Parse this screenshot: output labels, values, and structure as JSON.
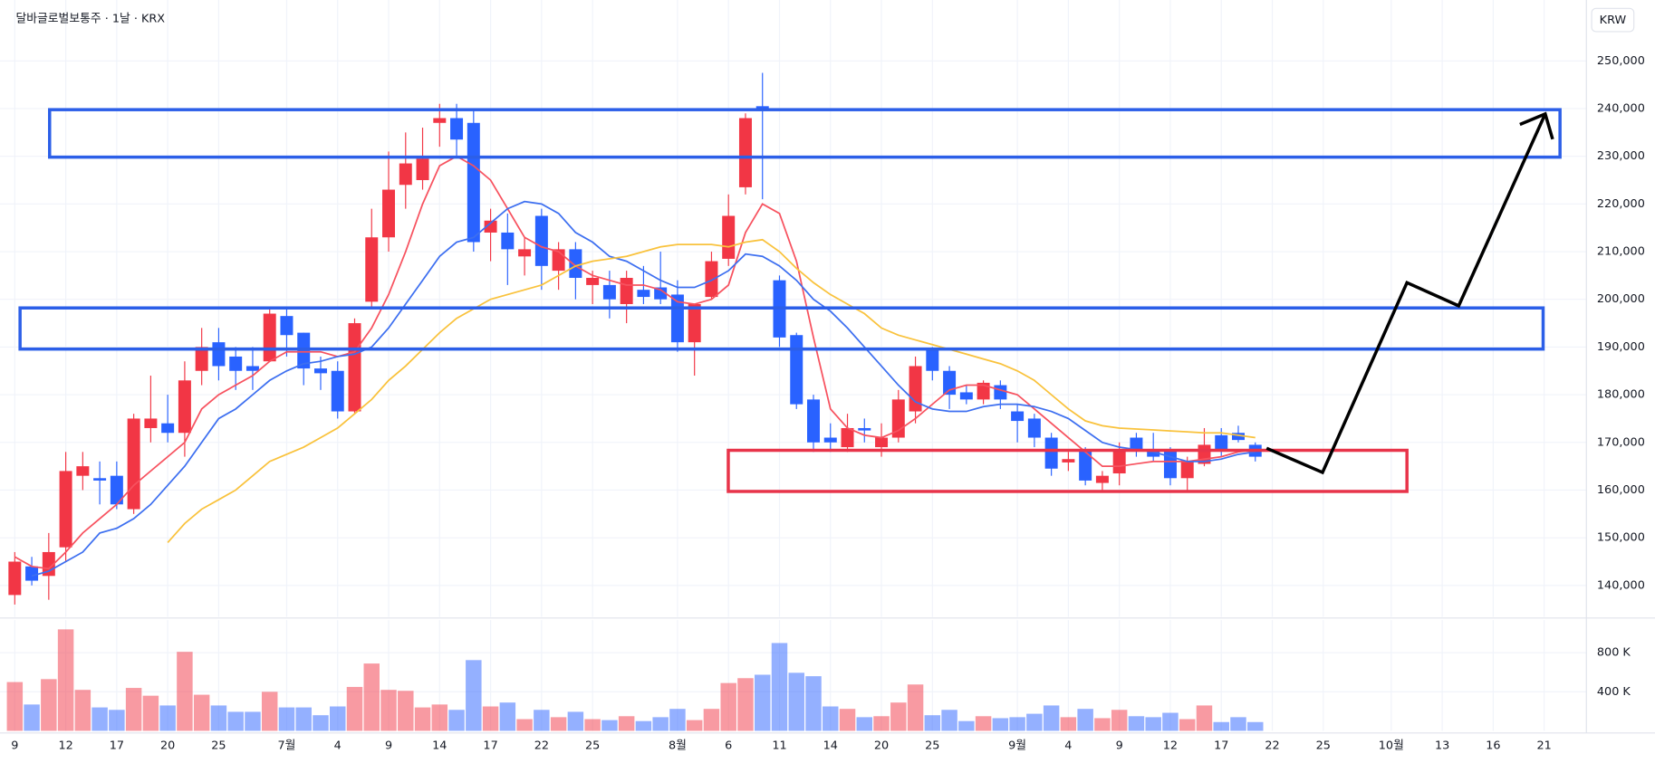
{
  "chart_data": {
    "type": "candlestick",
    "title": "달바글로벌보통주 · 1날 · KRX",
    "currency": "KRW",
    "up_color": "#f23645",
    "down_color": "#2962ff",
    "grid": true,
    "categories": [
      "9",
      null,
      null,
      "12",
      null,
      null,
      "17",
      null,
      null,
      "20",
      null,
      null,
      "25",
      null,
      null,
      null,
      "7월",
      null,
      null,
      "4",
      null,
      null,
      "9",
      null,
      null,
      "14",
      null,
      null,
      "17",
      null,
      null,
      "22",
      null,
      null,
      "25",
      null,
      null,
      null,
      null,
      "8월",
      null,
      null,
      "6",
      null,
      null,
      "11",
      null,
      null,
      "14",
      null,
      null,
      "20",
      null,
      null,
      "25",
      null,
      null,
      null,
      null,
      "9월",
      null,
      null,
      "4",
      null,
      null,
      "9",
      null,
      null,
      "12",
      null,
      null,
      "17",
      null,
      null,
      "22",
      null,
      null,
      "25",
      null,
      null,
      null,
      "10월",
      null,
      null,
      "13",
      null,
      null,
      "16",
      null,
      null,
      "21"
    ],
    "open": [
      138000,
      144000,
      142000,
      148000,
      163000,
      162500,
      163000,
      156000,
      173000,
      174000,
      172000,
      185000,
      191000,
      188000,
      186000,
      187000,
      196500,
      193000,
      185500,
      185000,
      176500,
      199500,
      213000,
      224000,
      225000,
      237000,
      238000,
      237000,
      214000,
      214000,
      209000,
      217500,
      206000,
      210500,
      203000,
      203000,
      199000,
      202000,
      202500,
      201000,
      191000,
      200500,
      208500,
      223500,
      240500,
      204000,
      192500,
      179000,
      171000,
      169000,
      173000,
      169000,
      171000,
      176500,
      189500,
      185000,
      180500,
      179000,
      182000,
      176500,
      175000,
      171000,
      165800,
      168500,
      161500,
      163500,
      171000,
      168500,
      168500,
      162500,
      165500,
      171500,
      172000,
      169500,
      null,
      null,
      null,
      null,
      null,
      null,
      null,
      null,
      null,
      null,
      null,
      null,
      null,
      null,
      null,
      null,
      null
    ],
    "high": [
      147000,
      146000,
      151000,
      168000,
      168000,
      166000,
      166000,
      176000,
      184000,
      180000,
      187000,
      194000,
      194000,
      190000,
      190000,
      198000,
      198000,
      193000,
      188000,
      187000,
      196000,
      219000,
      231000,
      235000,
      236000,
      241000,
      241000,
      240000,
      219000,
      218000,
      213000,
      219000,
      212000,
      212000,
      206000,
      206000,
      206000,
      207000,
      210000,
      204000,
      199000,
      210000,
      222000,
      239000,
      247500,
      205000,
      193000,
      180000,
      174000,
      176000,
      175000,
      174000,
      181000,
      188000,
      190000,
      186000,
      182000,
      183000,
      183000,
      178000,
      176000,
      172000,
      168000,
      169000,
      164000,
      170000,
      172000,
      172000,
      169000,
      167000,
      173000,
      173000,
      173500,
      170000,
      null,
      null,
      null,
      null,
      null,
      null,
      null,
      null,
      null,
      null,
      null,
      null,
      null,
      null,
      null,
      null,
      null
    ],
    "low": [
      136000,
      140000,
      137000,
      145000,
      160000,
      157000,
      156000,
      155000,
      170000,
      170000,
      167000,
      182000,
      183000,
      181000,
      181000,
      187000,
      188000,
      182000,
      181000,
      175000,
      176000,
      198000,
      210000,
      219000,
      223000,
      232000,
      230000,
      210000,
      208000,
      203000,
      205000,
      202000,
      202000,
      200000,
      199000,
      196000,
      195000,
      199000,
      199000,
      189000,
      184000,
      200000,
      207000,
      222000,
      221000,
      190000,
      177000,
      168000,
      168000,
      168000,
      170000,
      167000,
      170000,
      174000,
      183000,
      177000,
      178000,
      178000,
      177000,
      170000,
      169000,
      163000,
      164000,
      161000,
      160000,
      161000,
      167000,
      166000,
      161000,
      160000,
      165000,
      167000,
      170000,
      166000,
      null,
      null,
      null,
      null,
      null,
      null,
      null,
      null,
      null,
      null,
      null,
      null,
      null,
      null,
      null,
      null,
      null
    ],
    "close": [
      145000,
      141000,
      147000,
      164000,
      165000,
      162000,
      157000,
      175000,
      175000,
      172000,
      183000,
      190000,
      186000,
      185000,
      185000,
      197000,
      192500,
      185500,
      184500,
      176500,
      195000,
      213000,
      223000,
      228500,
      229500,
      238000,
      233500,
      212000,
      216500,
      210500,
      210500,
      207000,
      210500,
      204500,
      204500,
      200000,
      204500,
      200500,
      200000,
      191000,
      199000,
      208000,
      217500,
      238000,
      239500,
      192000,
      178000,
      170000,
      170000,
      173000,
      172500,
      171000,
      179000,
      186000,
      185000,
      180000,
      179000,
      182500,
      179000,
      174500,
      171000,
      164500,
      166500,
      162000,
      163000,
      168500,
      168500,
      167000,
      162500,
      166000,
      169500,
      168500,
      170500,
      167000,
      null,
      null,
      null,
      null,
      null,
      null,
      null,
      null,
      null,
      null,
      null,
      null,
      null,
      null,
      null,
      null,
      null
    ],
    "volume": [
      500000,
      270000,
      530000,
      1040000,
      420000,
      240000,
      215000,
      440000,
      360000,
      260000,
      810000,
      370000,
      260000,
      195000,
      195000,
      400000,
      240000,
      240000,
      160000,
      250000,
      450000,
      690000,
      420000,
      410000,
      240000,
      270000,
      215000,
      725000,
      250000,
      290000,
      120000,
      215000,
      140000,
      195000,
      120000,
      110000,
      150000,
      100000,
      140000,
      225000,
      110000,
      225000,
      490000,
      540000,
      575000,
      900000,
      595000,
      560000,
      250000,
      225000,
      140000,
      150000,
      290000,
      475000,
      160000,
      215000,
      100000,
      150000,
      130000,
      140000,
      175000,
      260000,
      140000,
      225000,
      130000,
      215000,
      150000,
      140000,
      185000,
      120000,
      260000,
      90000,
      140000,
      90000,
      null,
      null,
      null,
      null,
      null,
      null,
      null,
      null,
      null,
      null,
      null,
      null,
      null,
      null,
      null,
      null,
      null
    ],
    "series": [
      {
        "color": "#f7525f",
        "values": [
          146000,
          144000,
          143500,
          147000,
          151000,
          154000,
          157000,
          161000,
          164000,
          167000,
          170000,
          177000,
          180000,
          182000,
          184000,
          187000,
          189000,
          189000,
          189000,
          188000,
          189000,
          194000,
          201000,
          210000,
          220000,
          228000,
          230000,
          228000,
          225000,
          219000,
          213000,
          211000,
          210000,
          207000,
          205000,
          204000,
          203000,
          203000,
          202000,
          199500,
          199000,
          200000,
          203000,
          214000,
          220000,
          218000,
          208000,
          192000,
          177000,
          173000,
          171500,
          171000,
          172500,
          175000,
          178000,
          181000,
          182000,
          182000,
          181000,
          180000,
          177000,
          174000,
          171000,
          168000,
          165000,
          165000,
          165500,
          166000,
          166000,
          166000,
          166500,
          167000,
          168000,
          168500,
          null,
          null,
          null,
          null,
          null,
          null,
          null,
          null,
          null,
          null,
          null,
          null,
          null,
          null,
          null,
          null,
          null
        ]
      },
      {
        "color": "#3d6ff0",
        "values": [
          null,
          142000,
          143000,
          145000,
          147000,
          151000,
          152000,
          154000,
          157000,
          161000,
          165000,
          170000,
          175000,
          177000,
          180000,
          183000,
          185000,
          186500,
          187000,
          188000,
          188500,
          190000,
          194000,
          199000,
          204000,
          209000,
          212000,
          213000,
          216000,
          219000,
          220500,
          220000,
          218000,
          214000,
          212000,
          209000,
          208000,
          206000,
          204000,
          202500,
          202500,
          204000,
          206000,
          209500,
          209000,
          207000,
          204000,
          200000,
          197500,
          194000,
          190000,
          186000,
          182000,
          178500,
          177000,
          176500,
          176500,
          177500,
          178000,
          178000,
          177500,
          176500,
          175000,
          172500,
          170000,
          169000,
          168500,
          168000,
          167000,
          166000,
          166000,
          166500,
          167500,
          168000,
          null,
          null,
          null,
          null,
          null,
          null,
          null,
          null,
          null,
          null,
          null,
          null,
          null,
          null,
          null,
          null,
          null
        ]
      },
      {
        "color": "#f9c23c",
        "values": [
          null,
          null,
          null,
          null,
          null,
          null,
          null,
          null,
          null,
          149000,
          153000,
          156000,
          158000,
          160000,
          163000,
          166000,
          167500,
          169000,
          171000,
          173000,
          176000,
          179000,
          183000,
          186000,
          189500,
          193000,
          196000,
          198000,
          200000,
          201000,
          202000,
          203000,
          205000,
          207000,
          208000,
          208500,
          209000,
          210000,
          211000,
          211500,
          211500,
          211500,
          211000,
          212000,
          212500,
          210000,
          206500,
          203500,
          201000,
          199000,
          197000,
          194000,
          192500,
          191500,
          190500,
          189500,
          188500,
          187500,
          186500,
          185000,
          183000,
          180000,
          177000,
          174500,
          173500,
          173000,
          172800,
          172600,
          172400,
          172200,
          172000,
          172000,
          171500,
          171000,
          null,
          null,
          null,
          null,
          null,
          null,
          null,
          null,
          null,
          null,
          null,
          null,
          null,
          null,
          null,
          null,
          null
        ]
      }
    ],
    "ylim": [
      133400,
      261000
    ],
    "yticks": [
      {
        "value": 140000,
        "label": "140,000"
      },
      {
        "value": 150000,
        "label": "150,000"
      },
      {
        "value": 160000,
        "label": "160,000"
      },
      {
        "value": 170000,
        "label": "170,000"
      },
      {
        "value": 180000,
        "label": "180,000"
      },
      {
        "value": 190000,
        "label": "190,000"
      },
      {
        "value": 200000,
        "label": "200,000"
      },
      {
        "value": 210000,
        "label": "210,000"
      },
      {
        "value": 220000,
        "label": "220,000"
      },
      {
        "value": 230000,
        "label": "230,000"
      },
      {
        "value": 240000,
        "label": "240,000"
      },
      {
        "value": 250000,
        "label": "250,000"
      }
    ],
    "volume_ylim": [
      0,
      1135000
    ],
    "volume_yticks": [
      {
        "value": 400000,
        "label": "400 K"
      },
      {
        "value": 800000,
        "label": "800 K"
      }
    ]
  }
}
